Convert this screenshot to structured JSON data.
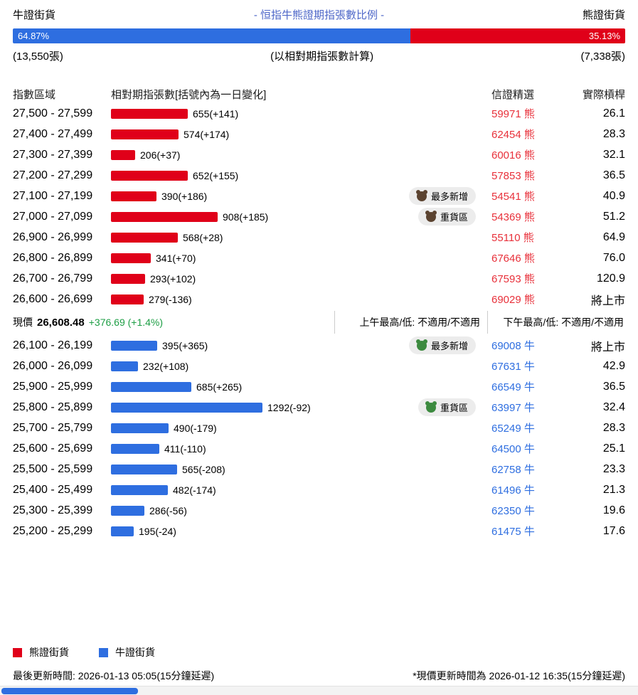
{
  "header": {
    "left_label": "牛證街貨",
    "title": "- 恒指牛熊證期指張數比例 -",
    "right_label": "熊證街貨"
  },
  "ratio_bar": {
    "bull_pct": 64.87,
    "bear_pct": 35.13,
    "bull_pct_label": "64.87%",
    "bear_pct_label": "35.13%",
    "bull_total": "(13,550張)",
    "note": "(以相對期指張數計算)",
    "bear_total": "(7,338張)"
  },
  "table": {
    "headers": {
      "range": "指數區域",
      "qty": "相對期指張數[括號內為一日變化]",
      "featured": "信證精選",
      "leverage": "實際槓桿"
    },
    "bear_rows": [
      {
        "range": "27,500 - 27,599",
        "qty": 655,
        "qty_label": "655(+141)",
        "code_label": "59971 熊",
        "leverage": "26.1"
      },
      {
        "range": "27,400 - 27,499",
        "qty": 574,
        "qty_label": "574(+174)",
        "code_label": "62454 熊",
        "leverage": "28.3"
      },
      {
        "range": "27,300 - 27,399",
        "qty": 206,
        "qty_label": "206(+37)",
        "code_label": "60016 熊",
        "leverage": "32.1"
      },
      {
        "range": "27,200 - 27,299",
        "qty": 652,
        "qty_label": "652(+155)",
        "code_label": "57853 熊",
        "leverage": "36.5"
      },
      {
        "range": "27,100 - 27,199",
        "qty": 390,
        "qty_label": "390(+186)",
        "badge": "最多新增",
        "code_label": "54541 熊",
        "leverage": "40.9"
      },
      {
        "range": "27,000 - 27,099",
        "qty": 908,
        "qty_label": "908(+185)",
        "badge": "重貨區",
        "code_label": "54369 熊",
        "leverage": "51.2"
      },
      {
        "range": "26,900 - 26,999",
        "qty": 568,
        "qty_label": "568(+28)",
        "code_label": "55110 熊",
        "leverage": "64.9"
      },
      {
        "range": "26,800 - 26,899",
        "qty": 341,
        "qty_label": "341(+70)",
        "code_label": "67646 熊",
        "leverage": "76.0"
      },
      {
        "range": "26,700 - 26,799",
        "qty": 293,
        "qty_label": "293(+102)",
        "code_label": "67593 熊",
        "leverage": "120.9"
      },
      {
        "range": "26,600 - 26,699",
        "qty": 279,
        "qty_label": "279(-136)",
        "code_label": "69029 熊",
        "leverage": "將上市"
      }
    ],
    "mid": {
      "label": "現價",
      "price": "26,608.48",
      "change": "+376.69 (+1.4%)",
      "am": "上午最高/低: 不適用/不適用",
      "pm": "下午最高/低: 不適用/不適用"
    },
    "bull_rows": [
      {
        "range": "26,100 - 26,199",
        "qty": 395,
        "qty_label": "395(+365)",
        "badge": "最多新增",
        "code_label": "69008 牛",
        "leverage": "將上市"
      },
      {
        "range": "26,000 - 26,099",
        "qty": 232,
        "qty_label": "232(+108)",
        "code_label": "67631 牛",
        "leverage": "42.9"
      },
      {
        "range": "25,900 - 25,999",
        "qty": 685,
        "qty_label": "685(+265)",
        "code_label": "66549 牛",
        "leverage": "36.5"
      },
      {
        "range": "25,800 - 25,899",
        "qty": 1292,
        "qty_label": "1292(-92)",
        "badge": "重貨區",
        "code_label": "63997 牛",
        "leverage": "32.4"
      },
      {
        "range": "25,700 - 25,799",
        "qty": 490,
        "qty_label": "490(-179)",
        "code_label": "65249 牛",
        "leverage": "28.3"
      },
      {
        "range": "25,600 - 25,699",
        "qty": 411,
        "qty_label": "411(-110)",
        "code_label": "64500 牛",
        "leverage": "25.1"
      },
      {
        "range": "25,500 - 25,599",
        "qty": 565,
        "qty_label": "565(-208)",
        "code_label": "62758 牛",
        "leverage": "23.3"
      },
      {
        "range": "25,400 - 25,499",
        "qty": 482,
        "qty_label": "482(-174)",
        "code_label": "61496 牛",
        "leverage": "21.3"
      },
      {
        "range": "25,300 - 25,399",
        "qty": 286,
        "qty_label": "286(-56)",
        "code_label": "62350 牛",
        "leverage": "19.6"
      },
      {
        "range": "25,200 - 25,299",
        "qty": 195,
        "qty_label": "195(-24)",
        "code_label": "61475 牛",
        "leverage": "17.6"
      }
    ]
  },
  "legend": {
    "bear": "熊證街貨",
    "bull": "牛證街貨"
  },
  "footer": {
    "last_update": "最後更新時間: 2026-01-13 05:05(15分鐘延遲)",
    "price_update": "*現價更新時間為 2026-01-12 16:35(15分鐘延遲)"
  },
  "colors": {
    "bull": "#2e6ee0",
    "bear": "#e00019",
    "bear_code": "#e8303a",
    "title": "#4e67c8",
    "gain": "#1d9e45"
  },
  "chart_data": {
    "type": "bar",
    "orientation": "horizontal",
    "title": "恒指牛熊證期指張數比例",
    "subtitle": "以相對期指張數計算",
    "xlabel": "相對期指張數[括號內為一日變化]",
    "ylabel": "指數區域",
    "legend": [
      "熊證街貨",
      "牛證街貨"
    ],
    "series": [
      {
        "name": "熊證街貨",
        "color": "#e00019",
        "categories": [
          "27,500 - 27,599",
          "27,400 - 27,499",
          "27,300 - 27,399",
          "27,200 - 27,299",
          "27,100 - 27,199",
          "27,000 - 27,099",
          "26,900 - 26,999",
          "26,800 - 26,899",
          "26,700 - 26,799",
          "26,600 - 26,699"
        ],
        "values": [
          655,
          574,
          206,
          652,
          390,
          908,
          568,
          341,
          293,
          279
        ],
        "one_day_changes": [
          141,
          174,
          37,
          155,
          186,
          185,
          28,
          70,
          102,
          -136
        ],
        "featured_codes": [
          "59971",
          "62454",
          "60016",
          "57853",
          "54541",
          "54369",
          "55110",
          "67646",
          "67593",
          "69029"
        ],
        "actual_leverage": [
          "26.1",
          "28.3",
          "32.1",
          "36.5",
          "40.9",
          "51.2",
          "64.9",
          "76.0",
          "120.9",
          "將上市"
        ],
        "annotations": {
          "最多新增": "27,100 - 27,199",
          "重貨區": "27,000 - 27,099"
        }
      },
      {
        "name": "牛證街貨",
        "color": "#2e6ee0",
        "categories": [
          "26,100 - 26,199",
          "26,000 - 26,099",
          "25,900 - 25,999",
          "25,800 - 25,899",
          "25,700 - 25,799",
          "25,600 - 25,699",
          "25,500 - 25,599",
          "25,400 - 25,499",
          "25,300 - 25,399",
          "25,200 - 25,299"
        ],
        "values": [
          395,
          232,
          685,
          1292,
          490,
          411,
          565,
          482,
          286,
          195
        ],
        "one_day_changes": [
          365,
          108,
          265,
          -92,
          -179,
          -110,
          -208,
          -174,
          -56,
          -24
        ],
        "featured_codes": [
          "69008",
          "67631",
          "66549",
          "63997",
          "65249",
          "64500",
          "62758",
          "61496",
          "62350",
          "61475"
        ],
        "actual_leverage": [
          "將上市",
          "42.9",
          "36.5",
          "32.4",
          "28.3",
          "25.1",
          "23.3",
          "21.3",
          "19.6",
          "17.6"
        ],
        "annotations": {
          "最多新增": "26,100 - 26,199",
          "重貨區": "25,800 - 25,899"
        }
      }
    ],
    "current_price": 26608.48,
    "price_change": "+376.69 (+1.4%)",
    "bull_bear_ratio": {
      "bull_pct": 64.87,
      "bear_pct": 35.13,
      "bull_contracts": 13550,
      "bear_contracts": 7338
    }
  }
}
